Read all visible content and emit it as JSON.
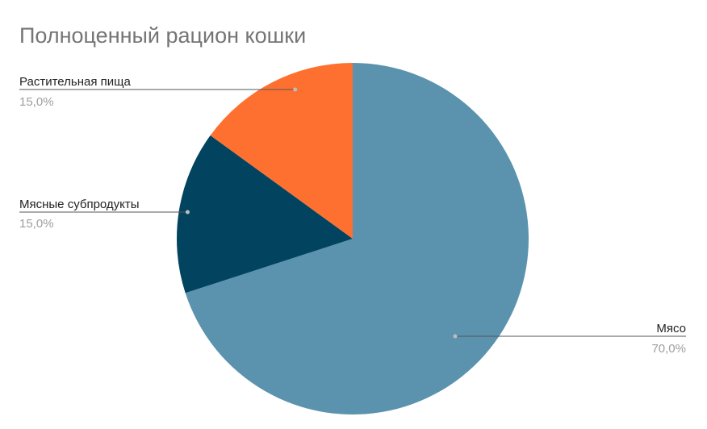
{
  "chart_data": {
    "type": "pie",
    "title": "Полноценный рацион кошки",
    "slices": [
      {
        "label": "Мясо",
        "value": 70,
        "percent_label": "70,0%",
        "color": "#5b93ae"
      },
      {
        "label": "Мясные субпродукты",
        "value": 15,
        "percent_label": "15,0%",
        "color": "#02445f"
      },
      {
        "label": "Растительная пища",
        "value": 15,
        "percent_label": "15,0%",
        "color": "#fe7030"
      }
    ]
  }
}
